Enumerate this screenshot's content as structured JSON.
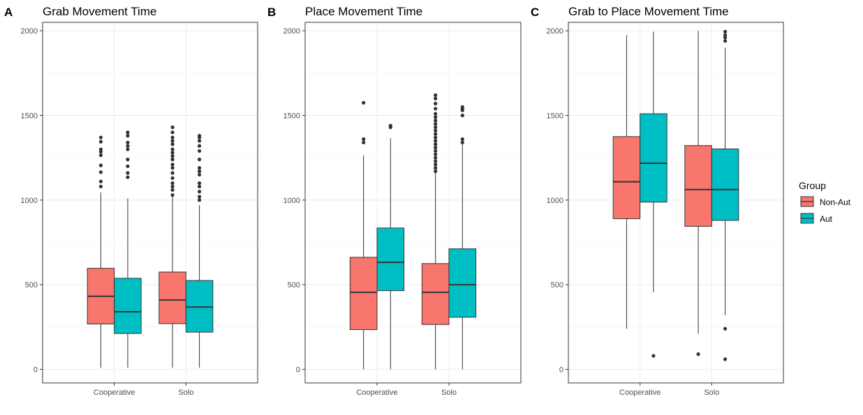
{
  "legend": {
    "title": "Group",
    "entries": [
      {
        "label": "Non-Aut",
        "color": "#F8766D"
      },
      {
        "label": "Aut",
        "color": "#00BFC4"
      }
    ]
  },
  "chart_data": [
    {
      "type": "box",
      "letter": "A",
      "title": "Grab Movement Time",
      "xlabel": "",
      "ylabel": "",
      "categories": [
        "Cooperative",
        "Solo"
      ],
      "ylim": [
        -80,
        2050
      ],
      "yticks": [
        0,
        500,
        1000,
        1500,
        2000
      ],
      "grid": true,
      "series": [
        {
          "name": "Non-Aut",
          "color": "#F8766D",
          "boxes": [
            {
              "whisker_low": 10,
              "q1": 268,
              "median": 432,
              "q3": 597,
              "whisker_high": 1045,
              "outliers": [
                1080,
                1110,
                1165,
                1205,
                1265,
                1285,
                1300,
                1345,
                1370
              ]
            },
            {
              "whisker_low": 10,
              "q1": 270,
              "median": 410,
              "q3": 575,
              "whisker_high": 1025,
              "outliers": [
                1030,
                1060,
                1080,
                1100,
                1130,
                1160,
                1190,
                1210,
                1240,
                1260,
                1280,
                1300,
                1330,
                1350,
                1370,
                1400,
                1430
              ]
            }
          ]
        },
        {
          "name": "Aut",
          "color": "#00BFC4",
          "boxes": [
            {
              "whisker_low": 10,
              "q1": 212,
              "median": 340,
              "q3": 538,
              "whisker_high": 1010,
              "outliers": [
                1135,
                1160,
                1200,
                1240,
                1300,
                1320,
                1340,
                1380,
                1400
              ]
            },
            {
              "whisker_low": 10,
              "q1": 220,
              "median": 368,
              "q3": 525,
              "whisker_high": 970,
              "outliers": [
                1000,
                1020,
                1050,
                1080,
                1100,
                1150,
                1170,
                1190,
                1240,
                1290,
                1320,
                1350,
                1370,
                1380
              ]
            }
          ]
        }
      ]
    },
    {
      "type": "box",
      "letter": "B",
      "title": "Place Movement Time",
      "xlabel": "",
      "ylabel": "",
      "categories": [
        "Cooperative",
        "Solo"
      ],
      "ylim": [
        -80,
        2050
      ],
      "yticks": [
        0,
        500,
        1000,
        1500,
        2000
      ],
      "grid": true,
      "series": [
        {
          "name": "Non-Aut",
          "color": "#F8766D",
          "boxes": [
            {
              "whisker_low": 0,
              "q1": 235,
              "median": 455,
              "q3": 662,
              "whisker_high": 1265,
              "outliers": [
                1340,
                1360,
                1575
              ]
            },
            {
              "whisker_low": 0,
              "q1": 265,
              "median": 455,
              "q3": 625,
              "whisker_high": 1165,
              "outliers": [
                1170,
                1190,
                1210,
                1230,
                1250,
                1270,
                1290,
                1310,
                1330,
                1350,
                1370,
                1390,
                1410,
                1430,
                1450,
                1470,
                1490,
                1510,
                1540,
                1570,
                1600,
                1620
              ]
            }
          ]
        },
        {
          "name": "Aut",
          "color": "#00BFC4",
          "boxes": [
            {
              "whisker_low": 0,
              "q1": 465,
              "median": 632,
              "q3": 835,
              "whisker_high": 1365,
              "outliers": [
                1430,
                1440
              ]
            },
            {
              "whisker_low": 0,
              "q1": 308,
              "median": 500,
              "q3": 712,
              "whisker_high": 1330,
              "outliers": [
                1340,
                1360,
                1500,
                1530,
                1540,
                1550
              ]
            }
          ]
        }
      ]
    },
    {
      "type": "box",
      "letter": "C",
      "title": "Grab to Place Movement Time",
      "xlabel": "",
      "ylabel": "",
      "categories": [
        "Cooperative",
        "Solo"
      ],
      "ylim": [
        -80,
        2050
      ],
      "yticks": [
        0,
        500,
        1000,
        1500,
        2000
      ],
      "grid": true,
      "series": [
        {
          "name": "Non-Aut",
          "color": "#F8766D",
          "boxes": [
            {
              "whisker_low": 240,
              "q1": 890,
              "median": 1108,
              "q3": 1375,
              "whisker_high": 1975,
              "outliers": []
            },
            {
              "whisker_low": 210,
              "q1": 845,
              "median": 1062,
              "q3": 1322,
              "whisker_high": 2000,
              "outliers": [
                90
              ]
            }
          ]
        },
        {
          "name": "Aut",
          "color": "#00BFC4",
          "boxes": [
            {
              "whisker_low": 455,
              "q1": 988,
              "median": 1218,
              "q3": 1510,
              "whisker_high": 1995,
              "outliers": [
                80
              ]
            },
            {
              "whisker_low": 320,
              "q1": 880,
              "median": 1062,
              "q3": 1302,
              "whisker_high": 1900,
              "outliers": [
                60,
                240,
                1940,
                1960,
                1975,
                1995
              ]
            }
          ]
        }
      ]
    }
  ]
}
